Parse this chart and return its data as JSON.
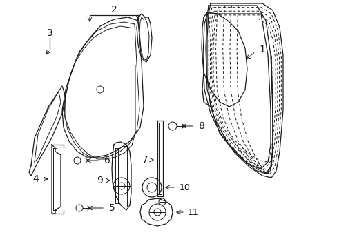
{
  "background_color": "#ffffff",
  "line_color": "#1a1a1a",
  "fig_width": 4.89,
  "fig_height": 3.6,
  "dpi": 100,
  "label_fontsize": 9
}
